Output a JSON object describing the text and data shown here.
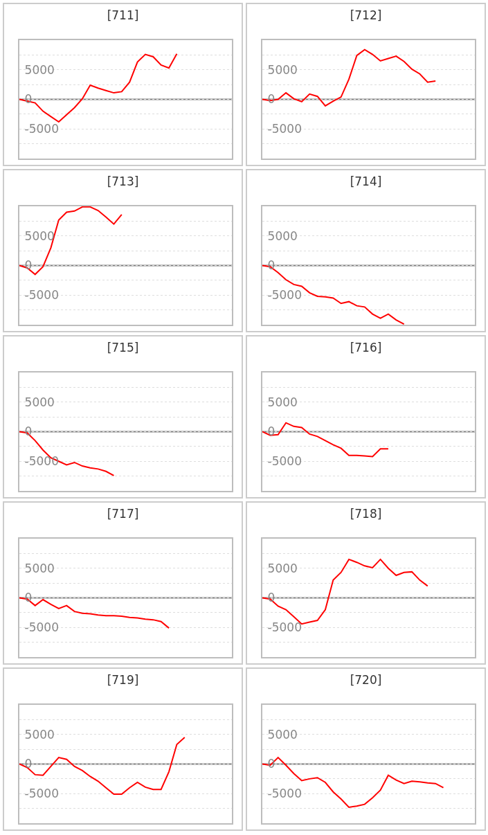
{
  "chart_data": [
    {
      "type": "line",
      "title": "[711]",
      "categories": [
        null,
        null,
        null,
        null,
        null,
        null,
        null,
        null,
        null,
        null,
        null,
        null,
        null,
        null,
        null,
        null,
        null,
        null,
        null,
        null,
        null,
        null,
        null,
        null,
        null,
        null,
        null,
        null
      ],
      "color": "#ff0000",
      "values": [
        0,
        -300,
        -600,
        -2000,
        -2900,
        -3800,
        -2600,
        -1400,
        100,
        2400,
        1900,
        1500,
        1100,
        1300,
        2900,
        6300,
        7600,
        7200,
        5800,
        5300,
        7700,
        null,
        null,
        null,
        null,
        null,
        null,
        null
      ],
      "ylim": [
        -10000,
        10000
      ],
      "yticks": [
        {
          "value": 7500,
          "label": null
        },
        5000,
        {
          "value": 2500,
          "label": null
        },
        0,
        {
          "value": -2500,
          "label": null
        },
        -5000,
        {
          "value": -7500,
          "label": null
        }
      ],
      "grid": "y",
      "tick_labels": "y",
      "ref_lines": [
        {
          "axis": "y",
          "value": 0,
          "color": "#808080"
        }
      ]
    },
    {
      "type": "line",
      "title": "[712]",
      "categories": [
        null,
        null,
        null,
        null,
        null,
        null,
        null,
        null,
        null,
        null,
        null,
        null,
        null,
        null,
        null,
        null,
        null,
        null,
        null,
        null,
        null,
        null,
        null,
        null,
        null,
        null,
        null,
        null
      ],
      "color": "#ff0000",
      "values": [
        0,
        -200,
        0,
        1100,
        100,
        -400,
        900,
        500,
        -1100,
        -300,
        400,
        3400,
        7400,
        8400,
        7600,
        6500,
        6900,
        7300,
        6400,
        5100,
        4300,
        2900,
        3100,
        null,
        null,
        null,
        null,
        null
      ],
      "ylim": [
        -10000,
        10000
      ],
      "yticks": [
        {
          "value": 7500,
          "label": null
        },
        5000,
        {
          "value": 2500,
          "label": null
        },
        0,
        {
          "value": -2500,
          "label": null
        },
        -5000,
        {
          "value": -7500,
          "label": null
        }
      ],
      "grid": "y",
      "tick_labels": "y",
      "ref_lines": [
        {
          "axis": "y",
          "value": 0,
          "color": "#808080"
        }
      ]
    },
    {
      "type": "line",
      "title": "[713]",
      "categories": [
        null,
        null,
        null,
        null,
        null,
        null,
        null,
        null,
        null,
        null,
        null,
        null,
        null,
        null,
        null,
        null,
        null,
        null,
        null,
        null,
        null,
        null,
        null,
        null,
        null,
        null,
        null,
        null
      ],
      "color": "#ff0000",
      "values": [
        0,
        -400,
        -1500,
        -200,
        3000,
        7700,
        9000,
        9200,
        9900,
        9900,
        9300,
        8200,
        7000,
        8600,
        null,
        null,
        null,
        null,
        null,
        null,
        null,
        null,
        null,
        null,
        null,
        null,
        null,
        null
      ],
      "ylim": [
        -10000,
        10000
      ],
      "yticks": [
        {
          "value": 7500,
          "label": null
        },
        5000,
        {
          "value": 2500,
          "label": null
        },
        0,
        {
          "value": -2500,
          "label": null
        },
        -5000,
        {
          "value": -7500,
          "label": null
        }
      ],
      "grid": "y",
      "tick_labels": "y",
      "ref_lines": [
        {
          "axis": "y",
          "value": 0,
          "color": "#808080"
        }
      ]
    },
    {
      "type": "line",
      "title": "[714]",
      "categories": [
        null,
        null,
        null,
        null,
        null,
        null,
        null,
        null,
        null,
        null,
        null,
        null,
        null,
        null,
        null,
        null,
        null,
        null,
        null,
        null,
        null,
        null,
        null,
        null,
        null,
        null,
        null,
        null
      ],
      "color": "#ff0000",
      "values": [
        0,
        -200,
        -1200,
        -2400,
        -3200,
        -3500,
        -4600,
        -5200,
        -5300,
        -5500,
        -6400,
        -6100,
        -6800,
        -7000,
        -8200,
        -8900,
        -8200,
        -9200,
        -9900,
        null,
        null,
        null,
        null,
        null,
        null,
        null,
        null,
        null
      ],
      "ylim": [
        -10000,
        10000
      ],
      "yticks": [
        {
          "value": 7500,
          "label": null
        },
        5000,
        {
          "value": 2500,
          "label": null
        },
        0,
        {
          "value": -2500,
          "label": null
        },
        -5000,
        {
          "value": -7500,
          "label": null
        }
      ],
      "grid": "y",
      "tick_labels": "y",
      "ref_lines": [
        {
          "axis": "y",
          "value": 0,
          "color": "#808080"
        }
      ]
    },
    {
      "type": "line",
      "title": "[715]",
      "categories": [
        null,
        null,
        null,
        null,
        null,
        null,
        null,
        null,
        null,
        null,
        null,
        null,
        null,
        null,
        null,
        null,
        null,
        null,
        null,
        null,
        null,
        null,
        null,
        null,
        null,
        null,
        null,
        null
      ],
      "color": "#ff0000",
      "values": [
        0,
        -200,
        -1500,
        -3100,
        -4400,
        -5000,
        -5600,
        -5200,
        -5800,
        -6100,
        -6300,
        -6700,
        -7400,
        null,
        null,
        null,
        null,
        null,
        null,
        null,
        null,
        null,
        null,
        null,
        null,
        null,
        null,
        null
      ],
      "ylim": [
        -10000,
        10000
      ],
      "yticks": [
        {
          "value": 7500,
          "label": null
        },
        5000,
        {
          "value": 2500,
          "label": null
        },
        0,
        {
          "value": -2500,
          "label": null
        },
        -5000,
        {
          "value": -7500,
          "label": null
        }
      ],
      "grid": "y",
      "tick_labels": "y",
      "ref_lines": [
        {
          "axis": "y",
          "value": 0,
          "color": "#808080"
        }
      ]
    },
    {
      "type": "line",
      "title": "[716]",
      "categories": [
        null,
        null,
        null,
        null,
        null,
        null,
        null,
        null,
        null,
        null,
        null,
        null,
        null,
        null,
        null,
        null,
        null,
        null,
        null,
        null,
        null,
        null,
        null,
        null,
        null,
        null,
        null,
        null
      ],
      "color": "#ff0000",
      "values": [
        0,
        -600,
        -500,
        1500,
        900,
        700,
        -400,
        -800,
        -1500,
        -2200,
        -2800,
        -4000,
        -4000,
        -4100,
        -4200,
        -2900,
        -2900,
        null,
        null,
        null,
        null,
        null,
        null,
        null,
        null,
        null,
        null,
        null
      ],
      "ylim": [
        -10000,
        10000
      ],
      "yticks": [
        {
          "value": 7500,
          "label": null
        },
        5000,
        {
          "value": 2500,
          "label": null
        },
        0,
        {
          "value": -2500,
          "label": null
        },
        -5000,
        {
          "value": -7500,
          "label": null
        }
      ],
      "grid": "y",
      "tick_labels": "y",
      "ref_lines": [
        {
          "axis": "y",
          "value": 0,
          "color": "#808080"
        }
      ]
    },
    {
      "type": "line",
      "title": "[717]",
      "categories": [
        null,
        null,
        null,
        null,
        null,
        null,
        null,
        null,
        null,
        null,
        null,
        null,
        null,
        null,
        null,
        null,
        null,
        null,
        null,
        null,
        null,
        null,
        null,
        null,
        null,
        null,
        null,
        null
      ],
      "color": "#ff0000",
      "values": [
        0,
        -200,
        -1300,
        -300,
        -1100,
        -1800,
        -1300,
        -2300,
        -2600,
        -2700,
        -2900,
        -3000,
        -3000,
        -3100,
        -3300,
        -3400,
        -3600,
        -3700,
        -4000,
        -5100,
        null,
        null,
        null,
        null,
        null,
        null,
        null,
        null
      ],
      "ylim": [
        -10000,
        10000
      ],
      "yticks": [
        {
          "value": 7500,
          "label": null
        },
        5000,
        {
          "value": 2500,
          "label": null
        },
        0,
        {
          "value": -2500,
          "label": null
        },
        -5000,
        {
          "value": -7500,
          "label": null
        }
      ],
      "grid": "y",
      "tick_labels": "y",
      "ref_lines": [
        {
          "axis": "y",
          "value": 0,
          "color": "#808080"
        }
      ]
    },
    {
      "type": "line",
      "title": "[718]",
      "categories": [
        null,
        null,
        null,
        null,
        null,
        null,
        null,
        null,
        null,
        null,
        null,
        null,
        null,
        null,
        null,
        null,
        null,
        null,
        null,
        null,
        null,
        null,
        null,
        null,
        null,
        null,
        null,
        null
      ],
      "color": "#ff0000",
      "values": [
        0,
        -200,
        -1400,
        -2000,
        -3200,
        -4400,
        -4100,
        -3800,
        -2000,
        3000,
        4300,
        6500,
        6000,
        5400,
        5100,
        6500,
        5000,
        3800,
        4300,
        4400,
        3000,
        2000,
        null,
        null,
        null,
        null,
        null,
        null
      ],
      "ylim": [
        -10000,
        10000
      ],
      "yticks": [
        {
          "value": 7500,
          "label": null
        },
        5000,
        {
          "value": 2500,
          "label": null
        },
        0,
        {
          "value": -2500,
          "label": null
        },
        -5000,
        {
          "value": -7500,
          "label": null
        }
      ],
      "grid": "y",
      "tick_labels": "y",
      "ref_lines": [
        {
          "axis": "y",
          "value": 0,
          "color": "#808080"
        }
      ]
    },
    {
      "type": "line",
      "title": "[719]",
      "categories": [
        null,
        null,
        null,
        null,
        null,
        null,
        null,
        null,
        null,
        null,
        null,
        null,
        null,
        null,
        null,
        null,
        null,
        null,
        null,
        null,
        null,
        null,
        null,
        null,
        null,
        null,
        null,
        null
      ],
      "color": "#ff0000",
      "values": [
        0,
        -600,
        -1800,
        -1900,
        -400,
        1100,
        800,
        -400,
        -1100,
        -2100,
        -2900,
        -4000,
        -5100,
        -5100,
        -4000,
        -3100,
        -3900,
        -4300,
        -4300,
        -1300,
        3300,
        4500,
        null,
        null,
        null,
        null,
        null,
        null
      ],
      "ylim": [
        -10000,
        10000
      ],
      "yticks": [
        {
          "value": 7500,
          "label": null
        },
        5000,
        {
          "value": 2500,
          "label": null
        },
        0,
        {
          "value": -2500,
          "label": null
        },
        -5000,
        {
          "value": -7500,
          "label": null
        }
      ],
      "grid": "y",
      "tick_labels": "y",
      "ref_lines": [
        {
          "axis": "y",
          "value": 0,
          "color": "#808080"
        }
      ]
    },
    {
      "type": "line",
      "title": "[720]",
      "categories": [
        null,
        null,
        null,
        null,
        null,
        null,
        null,
        null,
        null,
        null,
        null,
        null,
        null,
        null,
        null,
        null,
        null,
        null,
        null,
        null,
        null,
        null,
        null,
        null,
        null,
        null,
        null,
        null
      ],
      "color": "#ff0000",
      "values": [
        0,
        -200,
        1100,
        -200,
        -1600,
        -2800,
        -2500,
        -2300,
        -3100,
        -4700,
        -5900,
        -7300,
        -7100,
        -6800,
        -5700,
        -4400,
        -1900,
        -2700,
        -3300,
        -2900,
        -3000,
        -3200,
        -3300,
        -4000,
        null,
        null,
        null,
        null
      ],
      "ylim": [
        -10000,
        10000
      ],
      "yticks": [
        {
          "value": 7500,
          "label": null
        },
        5000,
        {
          "value": 2500,
          "label": null
        },
        0,
        {
          "value": -2500,
          "label": null
        },
        -5000,
        {
          "value": -7500,
          "label": null
        }
      ],
      "grid": "y",
      "tick_labels": "y",
      "ref_lines": [
        {
          "axis": "y",
          "value": 0,
          "color": "#808080"
        }
      ]
    }
  ]
}
